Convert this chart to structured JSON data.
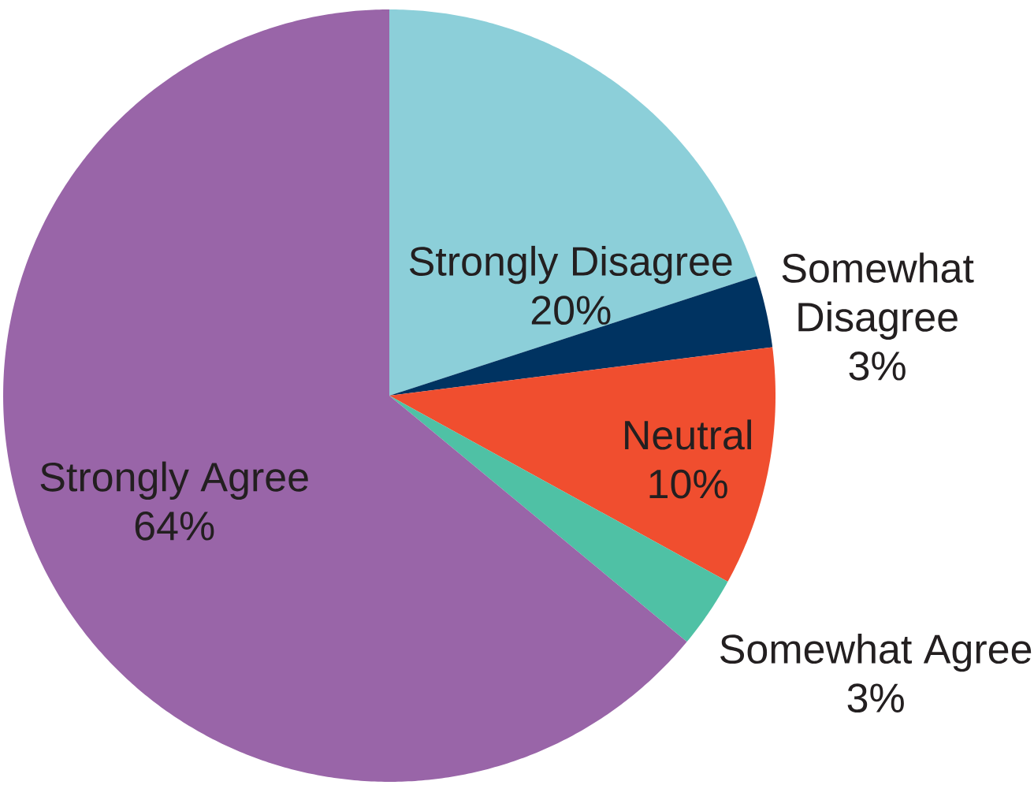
{
  "chart_data": {
    "type": "pie",
    "categories": [
      "Strongly Disagree",
      "Somewhat Disagree",
      "Neutral",
      "Somewhat Agree",
      "Strongly Agree"
    ],
    "values": [
      20,
      3,
      10,
      3,
      64
    ],
    "colors": [
      "#8ccfd9",
      "#003361",
      "#f04e2f",
      "#4fc1a5",
      "#9965a8"
    ],
    "value_labels": [
      "20%",
      "3%",
      "10%",
      "3%",
      "64%"
    ]
  }
}
